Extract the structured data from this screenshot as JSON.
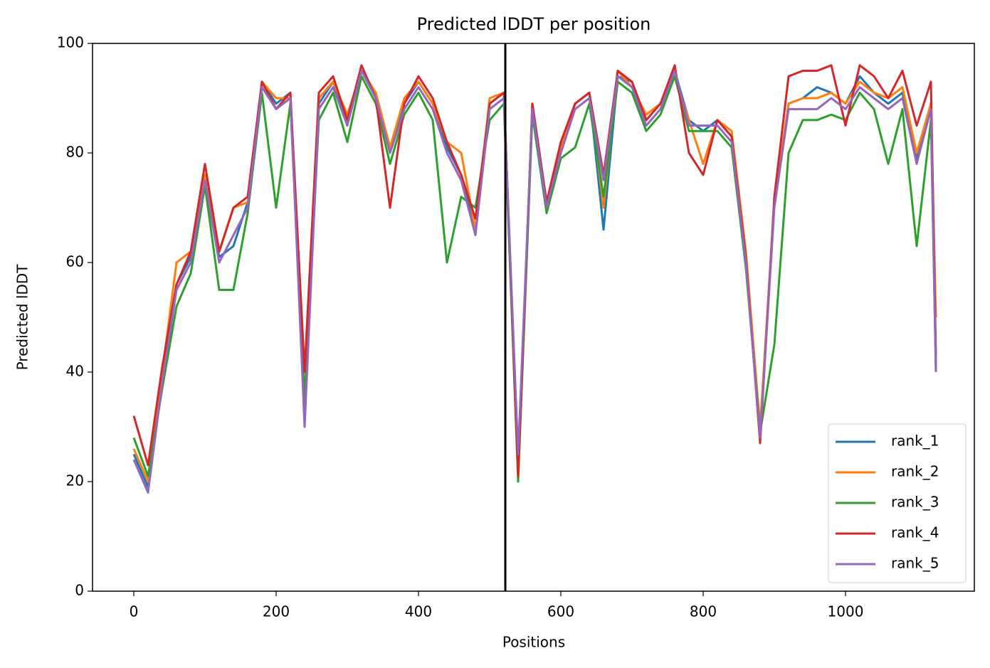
{
  "chart_data": {
    "type": "line",
    "title": "Predicted lDDT per position",
    "x_label": "Positions",
    "y_label": "Predicted lDDT",
    "x": [
      0,
      20,
      40,
      60,
      80,
      100,
      120,
      140,
      160,
      180,
      200,
      220,
      240,
      260,
      280,
      300,
      320,
      340,
      360,
      380,
      400,
      420,
      440,
      460,
      480,
      500,
      520,
      540,
      560,
      580,
      600,
      620,
      640,
      660,
      680,
      700,
      720,
      740,
      760,
      780,
      800,
      820,
      840,
      860,
      880,
      900,
      920,
      940,
      960,
      980,
      1000,
      1020,
      1040,
      1060,
      1080,
      1100,
      1120,
      1127
    ],
    "series": [
      {
        "name": "rank_1",
        "color": "#1f77b4",
        "values": [
          25,
          19,
          39,
          56,
          61,
          76,
          61,
          63,
          71,
          93,
          89,
          91,
          32,
          89,
          93,
          86,
          95,
          91,
          81,
          89,
          93,
          89,
          81,
          76,
          66,
          89,
          91,
          22,
          89,
          71,
          81,
          89,
          91,
          66,
          94,
          93,
          86,
          89,
          95,
          86,
          84,
          86,
          83,
          61,
          29,
          71,
          89,
          90,
          92,
          91,
          89,
          94,
          91,
          89,
          91,
          79,
          89,
          41
        ]
      },
      {
        "name": "rank_2",
        "color": "#ff7f0e",
        "values": [
          26,
          20,
          40,
          60,
          62,
          76,
          62,
          70,
          71,
          93,
          90,
          90,
          40,
          90,
          93,
          87,
          95,
          91,
          81,
          90,
          93,
          89,
          82,
          80,
          66,
          90,
          91,
          21,
          89,
          71,
          81,
          89,
          91,
          70,
          95,
          92,
          87,
          89,
          94,
          86,
          78,
          86,
          84,
          62,
          30,
          71,
          89,
          90,
          90,
          91,
          89,
          93,
          91,
          90,
          92,
          80,
          89,
          50
        ]
      },
      {
        "name": "rank_3",
        "color": "#2ca02c",
        "values": [
          28,
          21,
          37,
          52,
          58,
          74,
          55,
          55,
          69,
          91,
          70,
          89,
          35,
          86,
          91,
          82,
          94,
          89,
          78,
          87,
          91,
          86,
          60,
          72,
          70,
          86,
          89,
          20,
          87,
          69,
          79,
          81,
          89,
          72,
          93,
          91,
          84,
          87,
          94,
          84,
          84,
          84,
          81,
          59,
          29,
          45,
          80,
          86,
          86,
          87,
          86,
          91,
          88,
          78,
          88,
          63,
          86,
          40
        ]
      },
      {
        "name": "rank_4",
        "color": "#d62728",
        "values": [
          32,
          23,
          41,
          56,
          62,
          78,
          62,
          70,
          72,
          93,
          88,
          91,
          40,
          91,
          94,
          86,
          96,
          90,
          70,
          89,
          94,
          90,
          82,
          76,
          68,
          89,
          91,
          21,
          89,
          71,
          82,
          89,
          91,
          76,
          95,
          93,
          86,
          89,
          96,
          80,
          76,
          86,
          83,
          61,
          27,
          72,
          94,
          95,
          95,
          96,
          85,
          96,
          94,
          90,
          95,
          85,
          93,
          43
        ]
      },
      {
        "name": "rank_5",
        "color": "#9467bd",
        "values": [
          24,
          18,
          38,
          55,
          60,
          75,
          60,
          65,
          70,
          92,
          88,
          90,
          30,
          88,
          92,
          85,
          95,
          90,
          80,
          88,
          92,
          88,
          80,
          75,
          65,
          88,
          90,
          25,
          88,
          70,
          80,
          88,
          90,
          75,
          94,
          92,
          85,
          88,
          95,
          85,
          85,
          85,
          82,
          60,
          28,
          70,
          88,
          88,
          88,
          90,
          88,
          92,
          90,
          88,
          90,
          78,
          88,
          40
        ]
      }
    ],
    "vlines": [
      522
    ],
    "xlim": [
      -58,
      1181
    ],
    "ylim": [
      0,
      100
    ],
    "xticks": [
      0,
      200,
      400,
      600,
      800,
      1000
    ],
    "yticks": [
      0,
      20,
      40,
      60,
      80,
      100
    ],
    "grid": false,
    "legend": "lower right"
  }
}
